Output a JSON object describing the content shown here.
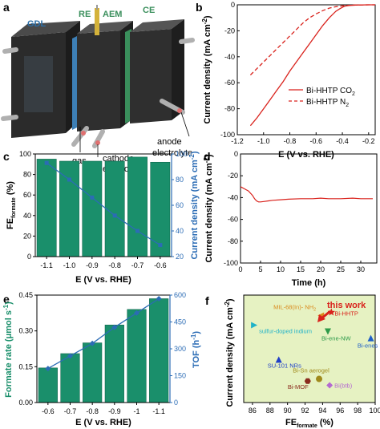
{
  "panels": {
    "a": {
      "letter": "a",
      "labels": {
        "gdl": "GDL",
        "re": "RE",
        "aem": "AEM",
        "ce": "CE",
        "gas": "gas",
        "cathode1": "cathode",
        "cathode2": "electrolyte",
        "anode1": "anode",
        "anode2": "electrolyte"
      },
      "colors": {
        "block": "#2b2b2b",
        "frame": "#3f4a52",
        "green_plate": "#3a8f5c",
        "blue_plate": "#3d7fb5",
        "tube": "#b0b0b0"
      }
    }
  },
  "chart_data": [
    {
      "id": "b",
      "letter": "b",
      "type": "line",
      "xlabel": "E (V vs. RHE)",
      "ylabel": "Current density (mA cm",
      "ylabel_sup": "-2",
      "ylabel_close": ")",
      "xlim": [
        -1.2,
        -0.15
      ],
      "ylim": [
        -100,
        0
      ],
      "xticks": [
        -1.2,
        -1.0,
        -0.8,
        -0.6,
        -0.4,
        -0.2
      ],
      "yticks": [
        -100,
        -80,
        -60,
        -40,
        -20,
        0
      ],
      "series": [
        {
          "name": "Bi-HHTP CO",
          "name_sub": "2",
          "color": "#d9221c",
          "dash": "solid",
          "x": [
            -1.1,
            -1.05,
            -1.0,
            -0.95,
            -0.9,
            -0.85,
            -0.8,
            -0.75,
            -0.7,
            -0.65,
            -0.6,
            -0.55,
            -0.5,
            -0.45,
            -0.42,
            -0.4,
            -0.38,
            -0.35,
            -0.3,
            -0.2,
            -0.15
          ],
          "y": [
            -93,
            -87,
            -80,
            -73,
            -66,
            -59,
            -51,
            -44,
            -37,
            -30,
            -23,
            -16,
            -10,
            -5,
            -3,
            -2,
            -1,
            -0.5,
            -0.2,
            0,
            0
          ]
        },
        {
          "name": "Bi-HHTP N",
          "name_sub": "2",
          "color": "#d9221c",
          "dash": "dashed",
          "x": [
            -1.1,
            -1.05,
            -1.0,
            -0.95,
            -0.9,
            -0.85,
            -0.8,
            -0.75,
            -0.7,
            -0.65,
            -0.6,
            -0.55,
            -0.5,
            -0.45,
            -0.4,
            -0.35,
            -0.3,
            -0.2,
            -0.15
          ],
          "y": [
            -54,
            -49,
            -44,
            -39,
            -34,
            -29,
            -24,
            -19,
            -14,
            -10,
            -7,
            -4.5,
            -2.5,
            -1.5,
            -0.8,
            -0.4,
            -0.2,
            0,
            0
          ]
        }
      ]
    },
    {
      "id": "c",
      "letter": "c",
      "type": "bar",
      "categories": [
        "-1.1",
        "-1.0",
        "-0.9",
        "-0.8",
        "-0.7",
        "-0.6"
      ],
      "xlabel": "E (V vs. RHE)",
      "ylabel_left_a": "FE",
      "ylabel_left_sub": "formate",
      "ylabel_left_b": " (%)",
      "ylabel_right": "Current density (mA cm",
      "ylabel_right_sup": "-2",
      "ylabel_right_close": ")",
      "ylim_left": [
        0,
        100
      ],
      "ylim_right": [
        20,
        100
      ],
      "yticks_left": [
        0,
        20,
        40,
        60,
        80,
        100
      ],
      "yticks_right": [
        20,
        40,
        60,
        80,
        100
      ],
      "bars": [
        95,
        93,
        93,
        93,
        97,
        92
      ],
      "line": [
        93,
        80,
        66,
        52,
        40,
        29
      ],
      "bar_color": "#1a8f6b",
      "line_color": "#2b6cb5",
      "right_axis_color": "#2b6cb5"
    },
    {
      "id": "d",
      "letter": "d",
      "type": "line",
      "xlabel": "Time (h)",
      "ylabel": "Current density (mA cm",
      "ylabel_sup": "-2",
      "ylabel_close": ")",
      "xlim": [
        0,
        34
      ],
      "ylim": [
        -100,
        0
      ],
      "xticks": [
        0,
        5,
        10,
        15,
        20,
        25,
        30
      ],
      "yticks": [
        -100,
        -80,
        -60,
        -40,
        -20,
        0
      ],
      "series": [
        {
          "color": "#d9221c",
          "x": [
            0,
            0.5,
            1,
            1.5,
            2,
            2.5,
            3,
            3.5,
            4,
            4.5,
            5,
            6,
            7,
            8,
            10,
            12,
            15,
            18,
            20,
            22,
            25,
            28,
            30,
            33
          ],
          "y": [
            -30,
            -31,
            -32,
            -33,
            -34,
            -36,
            -38,
            -41,
            -43,
            -44,
            -44,
            -43.5,
            -43,
            -42.5,
            -42,
            -41.5,
            -41,
            -41,
            -40.5,
            -41,
            -41,
            -40.5,
            -41,
            -41
          ]
        }
      ]
    },
    {
      "id": "e",
      "letter": "e",
      "type": "bar",
      "categories": [
        "-0.6",
        "-0.7",
        "-0.8",
        "-0.9",
        "-1",
        "-1.1"
      ],
      "xlabel": "E (V vs. RHE)",
      "ylabel_left": "Formate rate (μmol s",
      "ylabel_left_sup": "-1",
      "ylabel_left_close": ")",
      "ylabel_right": "TOF (h",
      "ylabel_right_sup": "-1",
      "ylabel_right_close": ")",
      "ylim_left": [
        0,
        0.45
      ],
      "ylim_right": [
        0,
        600
      ],
      "yticks_left": [
        "0.00",
        "0.15",
        "0.30",
        "0.45"
      ],
      "yticks_right": [
        0,
        150,
        300,
        450,
        600
      ],
      "bars": [
        0.145,
        0.205,
        0.25,
        0.325,
        0.39,
        0.435
      ],
      "line": [
        190,
        260,
        330,
        420,
        500,
        580
      ],
      "bar_color": "#1a8f6b",
      "line_color": "#2b6cb5",
      "right_axis_color": "#2b6cb5"
    },
    {
      "id": "f",
      "letter": "f",
      "type": "scatter",
      "xlabel_a": "FE",
      "xlabel_sub": "formate",
      "xlabel_b": " (%)",
      "ylabel": "Current density (mA cm",
      "ylabel_sup": "-2",
      "ylabel_close": ")",
      "xlim": [
        85,
        100
      ],
      "xticks": [
        86,
        88,
        90,
        92,
        94,
        96,
        98,
        100
      ],
      "bg_color": "#e6f2c2",
      "annotation": "this work",
      "points": [
        {
          "label": "Bi-HHTP",
          "x": 95,
          "y": 0.84,
          "color": "#d9221c",
          "marker": "star"
        },
        {
          "label": "MIL-68(In)- NH",
          "label_sub": "2",
          "x": 93.8,
          "y": 0.81,
          "color": "#d98a1c",
          "marker": "triangle-left"
        },
        {
          "label": "sulfur-doped indium",
          "x": 86.2,
          "y": 0.72,
          "color": "#20b2c8",
          "marker": "triangle-right"
        },
        {
          "label": "Bi-ene-NW",
          "x": 94.6,
          "y": 0.66,
          "color": "#2e9a4a",
          "marker": "triangle-down"
        },
        {
          "label": "Bi-enes",
          "x": 99.5,
          "y": 0.6,
          "color": "#1f5fc8",
          "marker": "triangle-up"
        },
        {
          "label": "SU-101 NRs",
          "x": 89.0,
          "y": 0.4,
          "color": "#1f3fc8",
          "marker": "triangle-up"
        },
        {
          "label": "Bi-Sn aerogel",
          "x": 93.6,
          "y": 0.22,
          "color": "#a08a1c",
          "marker": "circle"
        },
        {
          "label": "Bi-MOF",
          "x": 92.3,
          "y": 0.2,
          "color": "#8a2b1c",
          "marker": "hexagon"
        },
        {
          "label": "Bi(btb)",
          "x": 94.8,
          "y": 0.16,
          "color": "#b46ad0",
          "marker": "diamond"
        }
      ]
    }
  ]
}
